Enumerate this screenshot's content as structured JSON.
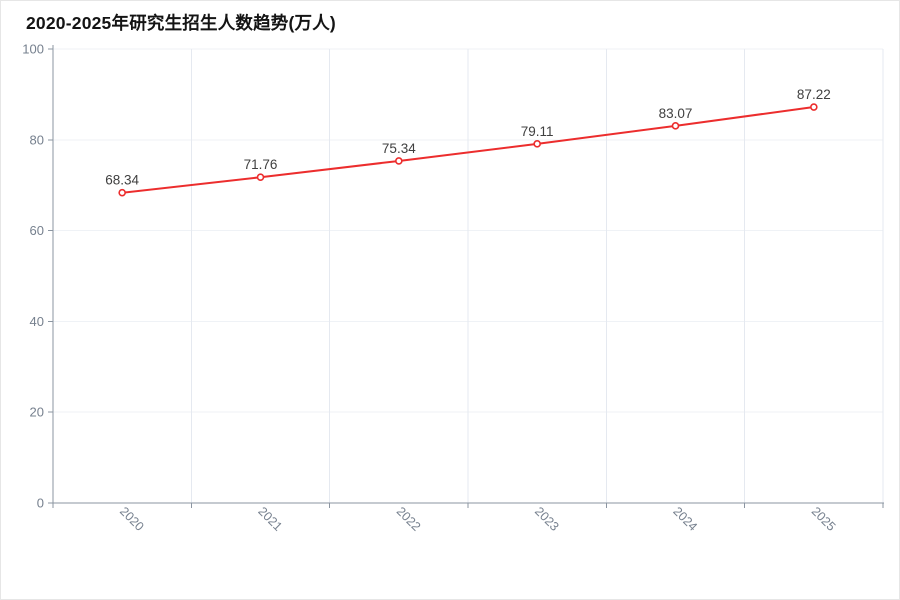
{
  "chart_data": {
    "type": "line",
    "title": "2020-2025年研究生招生人数趋势(万人)",
    "categories": [
      "2020",
      "2021",
      "2022",
      "2023",
      "2024",
      "2025"
    ],
    "values": [
      68.34,
      71.76,
      75.34,
      79.11,
      83.07,
      87.22
    ],
    "data_labels": [
      "68.34",
      "71.76",
      "75.34",
      "79.11",
      "83.07",
      "87.22"
    ],
    "xlabel": "",
    "ylabel": "",
    "ylim": [
      0,
      100
    ],
    "y_ticks": [
      0,
      20,
      40,
      60,
      80,
      100
    ],
    "y_tick_labels": [
      "0",
      "20",
      "40",
      "60",
      "80",
      "100"
    ],
    "x_label_rotate_deg": 45,
    "grid": "both",
    "legend_visible": false,
    "colors": {
      "line": "#ec2d2d",
      "marker_fill": "#ffffff",
      "marker_stroke": "#ec2d2d",
      "axis_line": "#8b95a1",
      "tick_label": "#76808e",
      "grid_vertical": "#e5e9f0",
      "grid_horizontal": "#eff2f6",
      "data_label": "#404040",
      "title": "#141414",
      "background": "#ffffff"
    }
  }
}
